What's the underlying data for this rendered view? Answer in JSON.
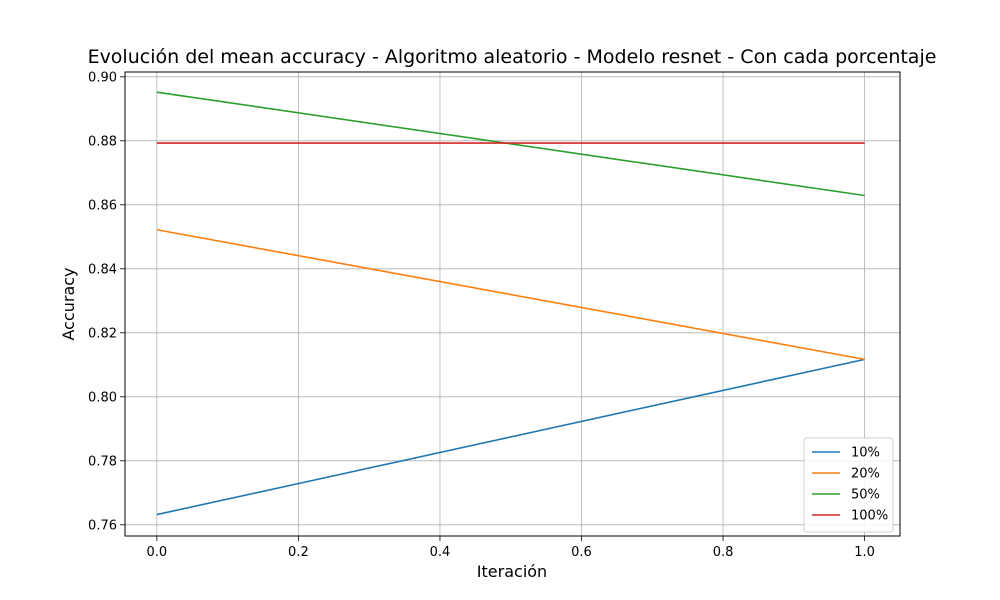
{
  "chart_data": {
    "type": "line",
    "title": "Evolución del mean accuracy - Algoritmo aleatorio - Modelo resnet - Con cada porcentaje",
    "xlabel": "Iteración",
    "ylabel": "Accuracy",
    "x": [
      0,
      1
    ],
    "xlim": [
      -0.045,
      1.05
    ],
    "ylim": [
      0.7565,
      0.9015
    ],
    "xticks": [
      "0.0",
      "0.2",
      "0.4",
      "0.6",
      "0.8",
      "1.0"
    ],
    "yticks": [
      "0.76",
      "0.78",
      "0.80",
      "0.82",
      "0.84",
      "0.86",
      "0.88",
      "0.90"
    ],
    "grid": true,
    "legend_position": "lower-right",
    "series": [
      {
        "name": "10%",
        "color": "#1f77b4",
        "values": [
          0.7632,
          0.8117
        ]
      },
      {
        "name": "20%",
        "color": "#ff7f0e",
        "values": [
          0.8522,
          0.8117
        ]
      },
      {
        "name": "50%",
        "color": "#2ca02c",
        "values": [
          0.8952,
          0.8629
        ]
      },
      {
        "name": "100%",
        "color": "#d62728",
        "values": [
          0.8793,
          0.8793
        ]
      }
    ]
  }
}
